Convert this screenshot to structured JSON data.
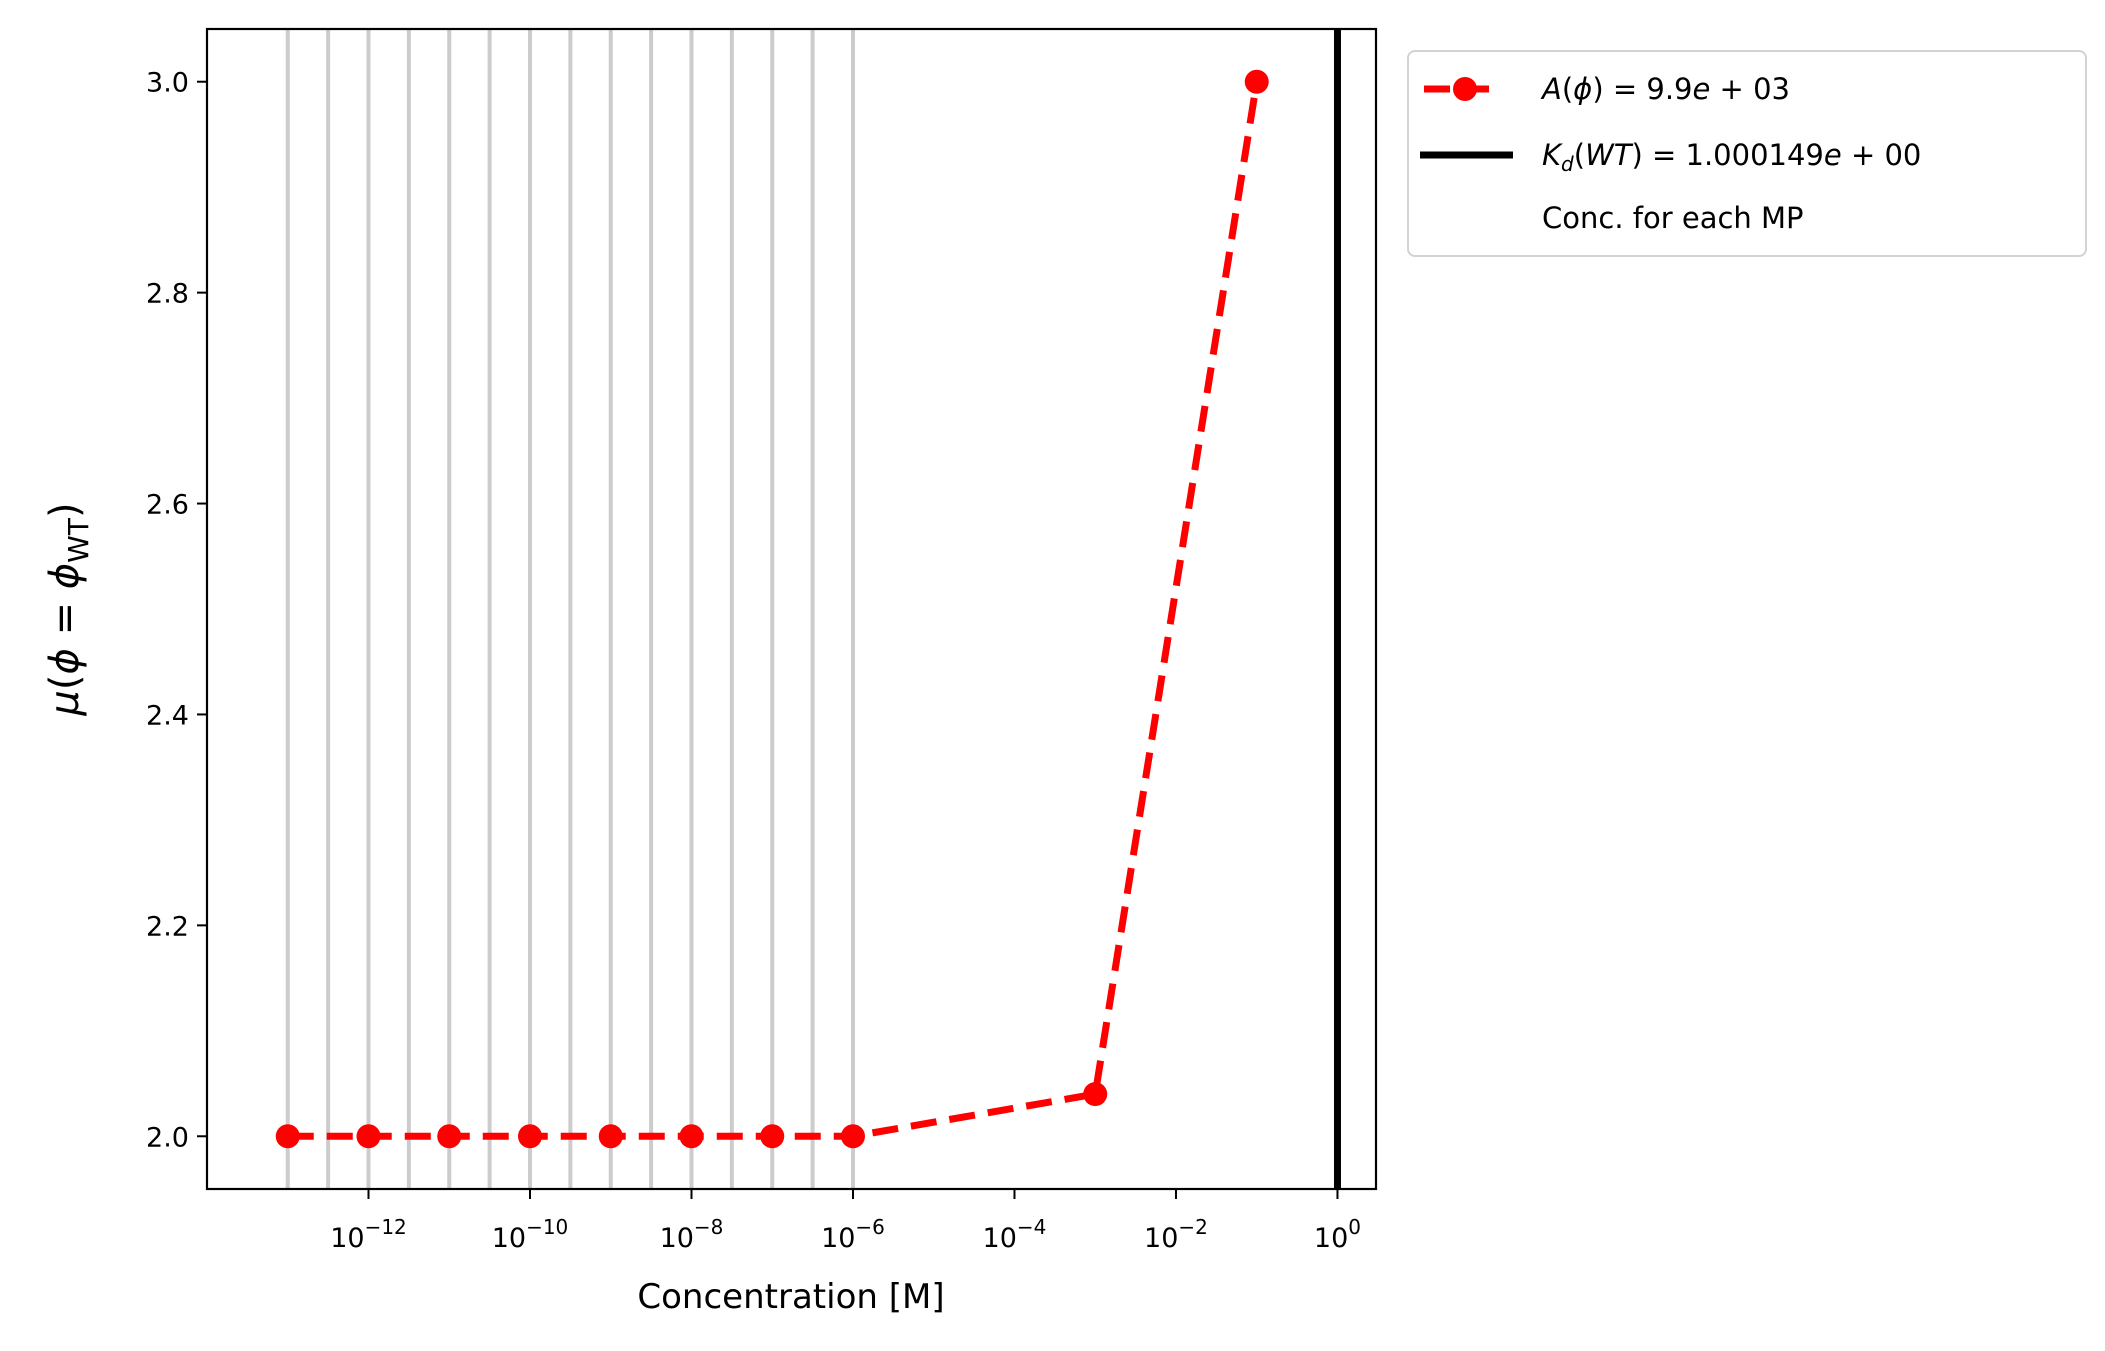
{
  "chart_data": {
    "type": "line",
    "xscale": "log",
    "xlabel": "Concentration [M]",
    "ylabel_math": {
      "mu": "μ",
      "open": "(",
      "phi": "ϕ",
      "eq": " = ",
      "phi2": "ϕ",
      "sub": "WT",
      "close": ")"
    },
    "xlim": [
      1e-14,
      3
    ],
    "ylim": [
      1.95,
      3.05
    ],
    "xticks": [
      {
        "value": 1e-12,
        "base": "10",
        "exp": "−12"
      },
      {
        "value": 1e-10,
        "base": "10",
        "exp": "−10"
      },
      {
        "value": 1e-08,
        "base": "10",
        "exp": "−8"
      },
      {
        "value": 1e-06,
        "base": "10",
        "exp": "−6"
      },
      {
        "value": 0.0001,
        "base": "10",
        "exp": "−4"
      },
      {
        "value": 0.01,
        "base": "10",
        "exp": "−2"
      },
      {
        "value": 1,
        "base": "10",
        "exp": "0"
      }
    ],
    "yticks": [
      "2.0",
      "2.2",
      "2.4",
      "2.6",
      "2.8",
      "3.0"
    ],
    "mp_concentrations": [
      1e-13,
      3.162e-13,
      1e-12,
      3.162e-12,
      1e-11,
      3.162e-11,
      1e-10,
      3.162e-10,
      1e-09,
      3.162e-09,
      1e-08,
      3.162e-08,
      1e-07,
      3.162e-07,
      1e-06
    ],
    "series": [
      {
        "name": "A(ϕ) = 9.9e + 03",
        "style": "dashed-with-markers",
        "color": "#ff0000",
        "x": [
          1e-13,
          1e-12,
          1e-11,
          1e-10,
          1e-09,
          1e-08,
          1e-07,
          1e-06,
          0.001,
          0.1
        ],
        "y": [
          2.0,
          2.0,
          2.0,
          2.0,
          2.0,
          2.0,
          2.0,
          2.0,
          2.04,
          3.0
        ]
      }
    ],
    "kd_line": {
      "value": 1.000149,
      "color": "#000000"
    },
    "mp_line_color": "#cccccc",
    "legend_placement": "outside-upper-right",
    "legend": {
      "series": {
        "a": "A",
        "open": "(",
        "phi": "ϕ",
        "rest": ") = 9.9",
        "e": "e",
        "tail": " + 03"
      },
      "kd": {
        "k": "K",
        "d": "d",
        "open": "(",
        "wt": "WT",
        "rest": ") = 1.000149",
        "e": "e",
        "tail": " + 00"
      },
      "mp": "Conc. for each MP"
    }
  }
}
